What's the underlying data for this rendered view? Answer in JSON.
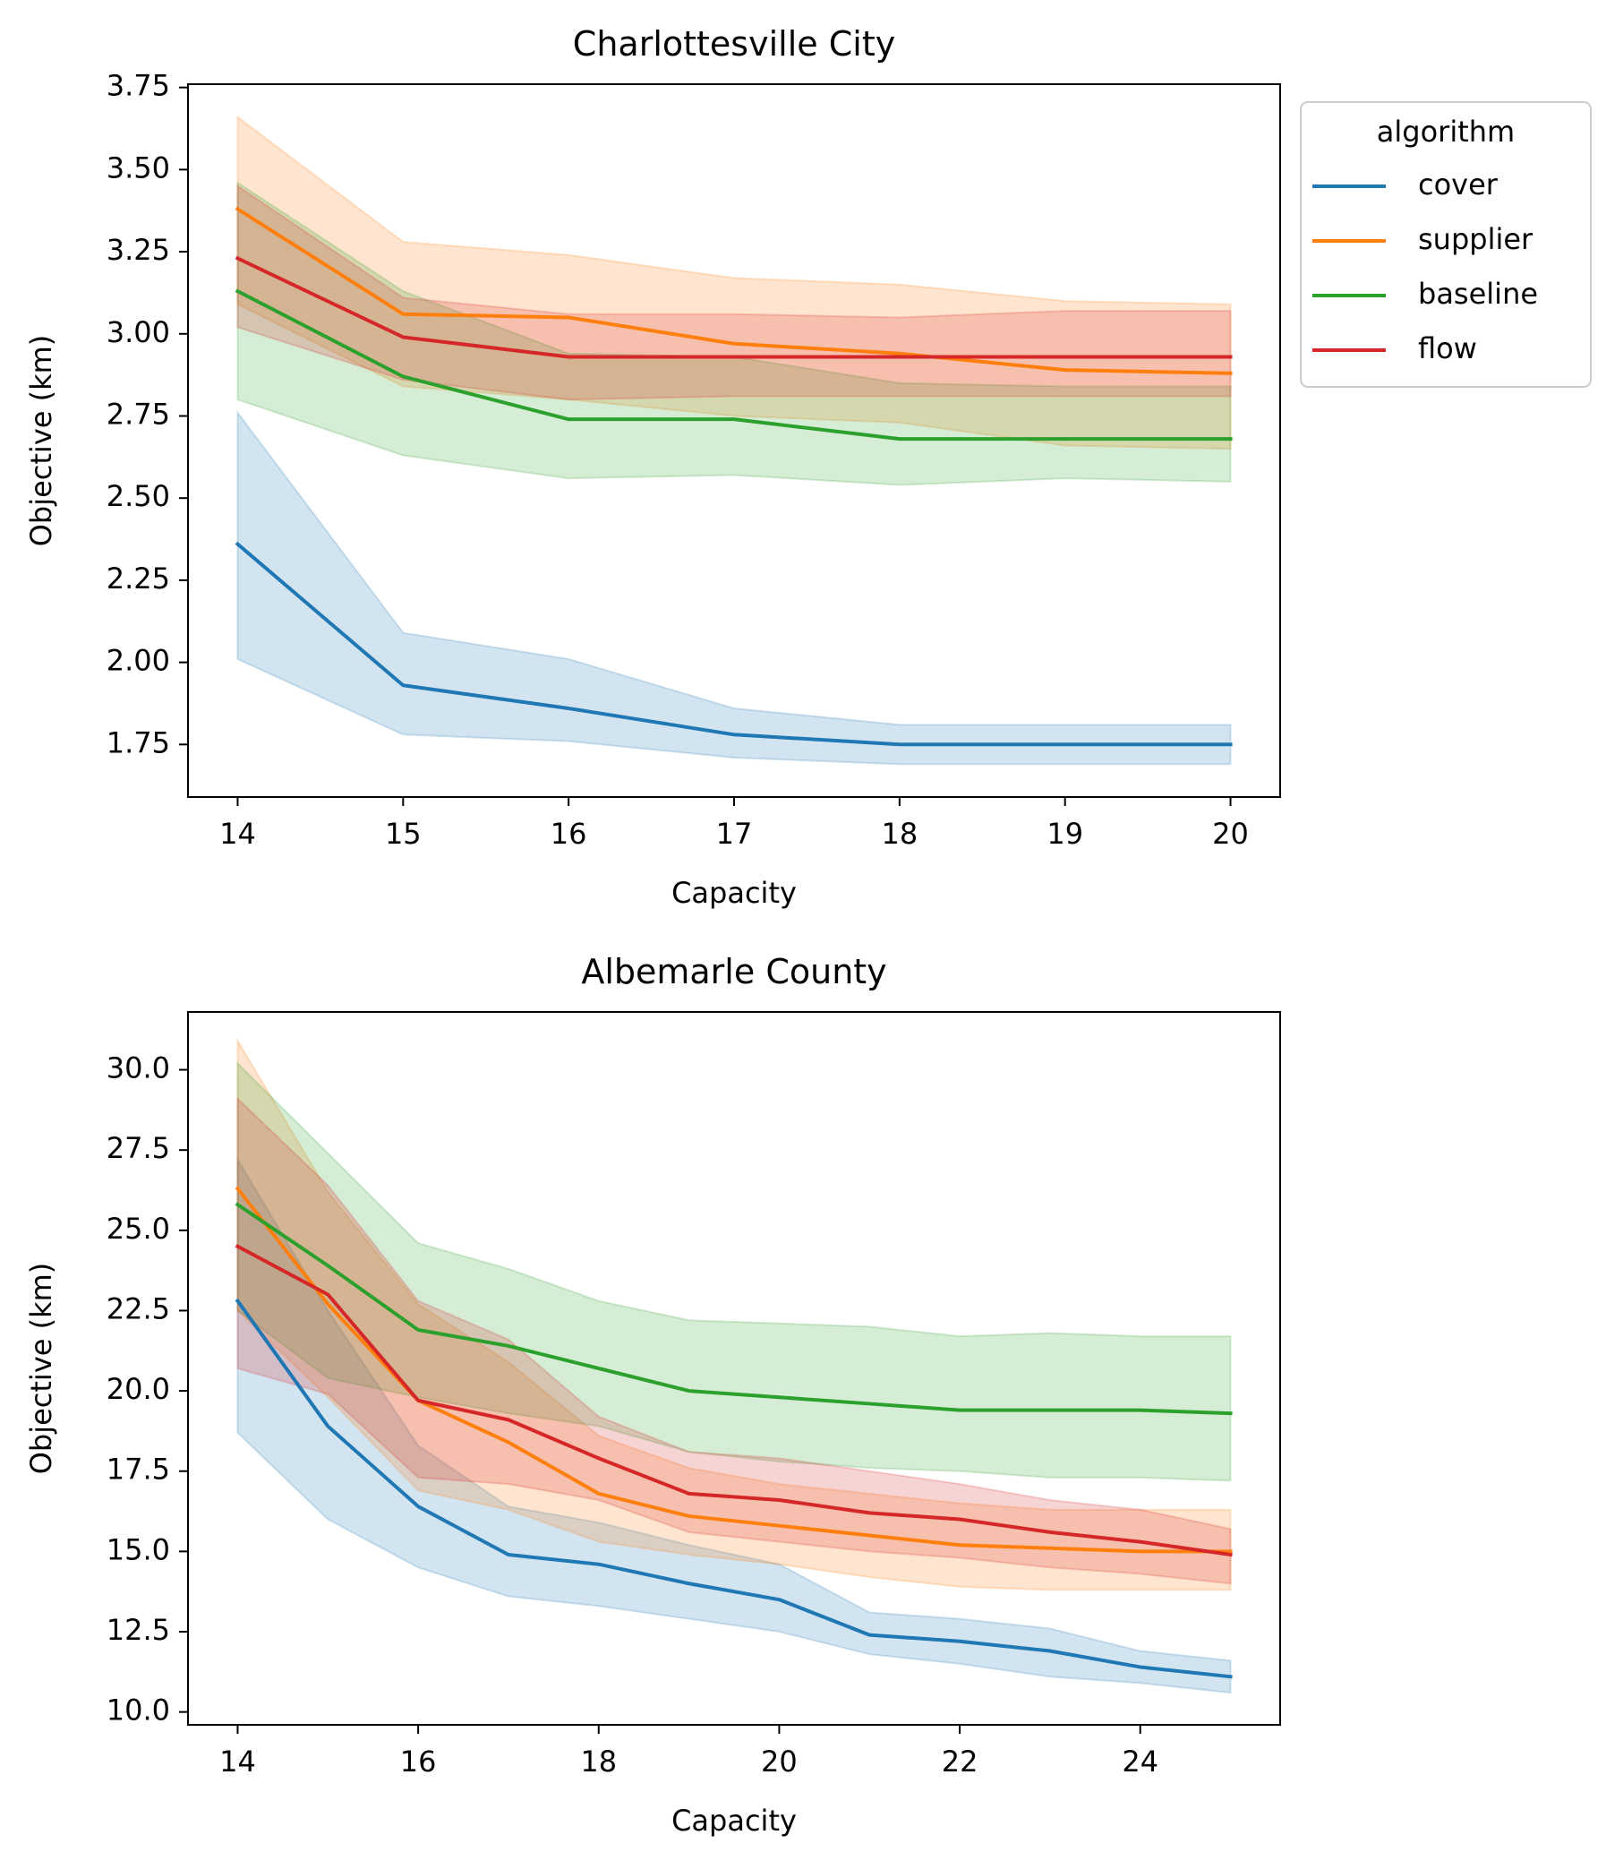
{
  "chart_data": [
    {
      "type": "line",
      "title": "Charlottesville City",
      "xlabel": "Capacity",
      "ylabel": "Objective (km)",
      "xlim": [
        13.7,
        20.3
      ],
      "ylim": [
        1.59,
        3.76
      ],
      "xticks": [
        14,
        15,
        16,
        17,
        18,
        19,
        20
      ],
      "xtick_labels": [
        "14",
        "15",
        "16",
        "17",
        "18",
        "19",
        "20"
      ],
      "yticks": [
        1.75,
        2.0,
        2.25,
        2.5,
        2.75,
        3.0,
        3.25,
        3.5,
        3.75
      ],
      "ytick_labels": [
        "1.75",
        "2.00",
        "2.25",
        "2.50",
        "2.75",
        "3.00",
        "3.25",
        "3.50",
        "3.75"
      ],
      "grid": false,
      "legend": {
        "title": "algorithm",
        "placement": "outside upper right",
        "entries": [
          "cover",
          "supplier",
          "baseline",
          "flow"
        ]
      },
      "series": [
        {
          "name": "cover",
          "color": "#1f77b4",
          "x": [
            14,
            15,
            16,
            17,
            18,
            19,
            20
          ],
          "y": [
            2.36,
            1.93,
            1.86,
            1.78,
            1.75,
            1.75,
            1.75
          ],
          "ci_low": [
            2.01,
            1.78,
            1.76,
            1.71,
            1.69,
            1.69,
            1.69
          ],
          "ci_high": [
            2.76,
            2.09,
            2.01,
            1.86,
            1.81,
            1.81,
            1.81
          ]
        },
        {
          "name": "supplier",
          "color": "#ff7f0e",
          "x": [
            14,
            15,
            16,
            17,
            18,
            19,
            20
          ],
          "y": [
            3.38,
            3.06,
            3.05,
            2.97,
            2.94,
            2.89,
            2.88
          ],
          "ci_low": [
            3.09,
            2.84,
            2.8,
            2.75,
            2.73,
            2.66,
            2.65
          ],
          "ci_high": [
            3.66,
            3.28,
            3.24,
            3.17,
            3.15,
            3.1,
            3.09
          ]
        },
        {
          "name": "baseline",
          "color": "#2ca02c",
          "x": [
            14,
            15,
            16,
            17,
            18,
            19,
            20
          ],
          "y": [
            3.13,
            2.87,
            2.74,
            2.74,
            2.68,
            2.68,
            2.68
          ],
          "ci_low": [
            2.8,
            2.63,
            2.56,
            2.57,
            2.54,
            2.56,
            2.55
          ],
          "ci_high": [
            3.46,
            3.13,
            2.94,
            2.93,
            2.85,
            2.84,
            2.84
          ]
        },
        {
          "name": "flow",
          "color": "#d62728",
          "x": [
            14,
            15,
            16,
            17,
            18,
            19,
            20
          ],
          "y": [
            3.23,
            2.99,
            2.93,
            2.93,
            2.93,
            2.93,
            2.93
          ],
          "ci_low": [
            3.02,
            2.86,
            2.8,
            2.81,
            2.81,
            2.81,
            2.81
          ],
          "ci_high": [
            3.45,
            3.11,
            3.06,
            3.06,
            3.05,
            3.07,
            3.07
          ]
        }
      ]
    },
    {
      "type": "line",
      "title": "Albemarle County",
      "xlabel": "Capacity",
      "ylabel": "Objective (km)",
      "xlim": [
        13.45,
        25.55
      ],
      "ylim": [
        9.6,
        31.8
      ],
      "xticks": [
        14,
        16,
        18,
        20,
        22,
        24
      ],
      "xtick_labels": [
        "14",
        "16",
        "18",
        "20",
        "22",
        "24"
      ],
      "yticks": [
        10,
        12.5,
        15,
        17.5,
        20,
        22.5,
        25,
        27.5,
        30
      ],
      "ytick_labels": [
        "10.0",
        "12.5",
        "15.0",
        "17.5",
        "20.0",
        "22.5",
        "25.0",
        "27.5",
        "30.0"
      ],
      "grid": false,
      "series": [
        {
          "name": "cover",
          "color": "#1f77b4",
          "x": [
            14,
            15,
            16,
            17,
            18,
            19,
            20,
            21,
            22,
            23,
            24,
            25
          ],
          "y": [
            22.8,
            18.9,
            16.4,
            14.9,
            14.6,
            14.0,
            13.5,
            12.4,
            12.2,
            11.9,
            11.4,
            11.1
          ],
          "ci_low": [
            18.7,
            16.0,
            14.5,
            13.6,
            13.3,
            12.9,
            12.5,
            11.8,
            11.5,
            11.1,
            10.9,
            10.6
          ],
          "ci_high": [
            27.2,
            22.5,
            18.3,
            16.4,
            15.9,
            15.2,
            14.6,
            13.1,
            12.9,
            12.6,
            11.9,
            11.6
          ]
        },
        {
          "name": "supplier",
          "color": "#ff7f0e",
          "x": [
            14,
            15,
            16,
            17,
            18,
            19,
            20,
            21,
            22,
            23,
            24,
            25
          ],
          "y": [
            26.3,
            22.7,
            19.7,
            18.4,
            16.8,
            16.1,
            15.8,
            15.5,
            15.2,
            15.1,
            15.0,
            15.0
          ],
          "ci_low": [
            22.5,
            19.8,
            16.9,
            16.3,
            15.3,
            14.9,
            14.6,
            14.2,
            13.9,
            13.8,
            13.8,
            13.8
          ],
          "ci_high": [
            30.9,
            26.2,
            22.7,
            20.9,
            18.6,
            17.6,
            17.1,
            16.8,
            16.5,
            16.3,
            16.3,
            16.3
          ]
        },
        {
          "name": "baseline",
          "color": "#2ca02c",
          "x": [
            14,
            15,
            16,
            17,
            18,
            19,
            20,
            21,
            22,
            23,
            24,
            25
          ],
          "y": [
            25.8,
            23.9,
            21.9,
            21.4,
            20.7,
            20.0,
            19.8,
            19.6,
            19.4,
            19.4,
            19.4,
            19.3
          ],
          "ci_low": [
            22.5,
            20.4,
            19.8,
            19.3,
            18.9,
            18.1,
            17.8,
            17.6,
            17.5,
            17.3,
            17.3,
            17.2
          ],
          "ci_high": [
            30.2,
            27.4,
            24.6,
            23.8,
            22.8,
            22.2,
            22.1,
            22.0,
            21.7,
            21.8,
            21.7,
            21.7
          ]
        },
        {
          "name": "flow",
          "color": "#d62728",
          "x": [
            14,
            15,
            16,
            17,
            18,
            19,
            20,
            21,
            22,
            23,
            24,
            25
          ],
          "y": [
            24.5,
            23.0,
            19.7,
            19.1,
            17.9,
            16.8,
            16.6,
            16.2,
            16.0,
            15.6,
            15.3,
            14.9
          ],
          "ci_low": [
            20.7,
            19.9,
            17.3,
            17.1,
            16.6,
            15.6,
            15.3,
            15.0,
            14.8,
            14.5,
            14.3,
            14.0
          ],
          "ci_high": [
            29.1,
            26.4,
            22.8,
            21.6,
            19.2,
            18.1,
            17.9,
            17.5,
            17.1,
            16.6,
            16.3,
            15.7
          ]
        }
      ]
    }
  ]
}
